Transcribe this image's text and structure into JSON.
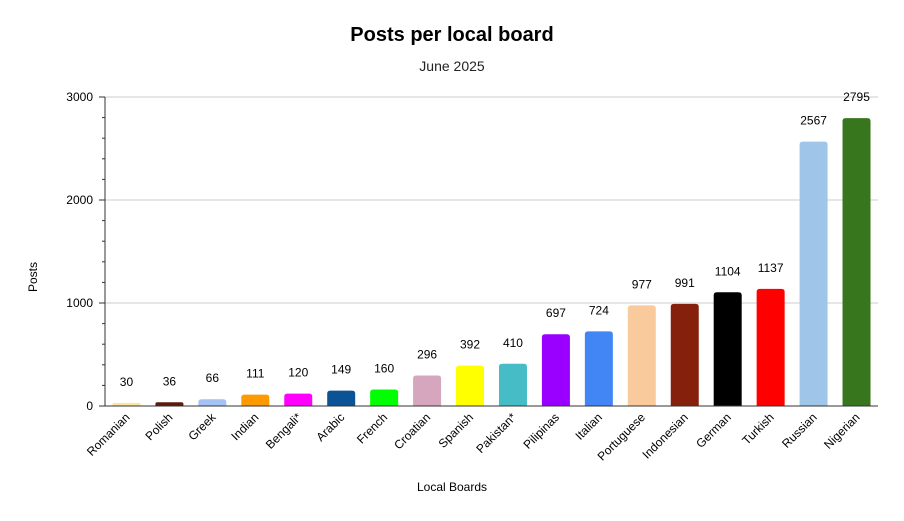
{
  "chart_data": {
    "type": "bar",
    "title": "Posts per local board",
    "subtitle": "June 2025",
    "xlabel": "Local Boards",
    "ylabel": "Posts",
    "ylim": [
      0,
      3000
    ],
    "yticks": [
      0,
      1000,
      2000,
      3000
    ],
    "grid": true,
    "legend": "none",
    "categories": [
      "Romanian",
      "Polish",
      "Greek",
      "Indian",
      "Bengali*",
      "Arabic",
      "French",
      "Croatian",
      "Spanish",
      "Pakistan*",
      "Pilipinas",
      "Italian",
      "Portuguese",
      "Indonesian",
      "German",
      "Turkish",
      "Russian",
      "Nigerian"
    ],
    "values": [
      30,
      36,
      66,
      111,
      120,
      149,
      160,
      296,
      392,
      410,
      697,
      724,
      977,
      991,
      1104,
      1137,
      2567,
      2795
    ],
    "colors": [
      "#ffe599",
      "#5b1a0a",
      "#a4c2f4",
      "#ff9900",
      "#ff00ff",
      "#0b5394",
      "#00ff00",
      "#d5a6bd",
      "#ffff00",
      "#46bdc6",
      "#9900ff",
      "#4285f4",
      "#f9cb9c",
      "#85200c",
      "#000000",
      "#ff0000",
      "#9fc5e8",
      "#38761d"
    ]
  }
}
